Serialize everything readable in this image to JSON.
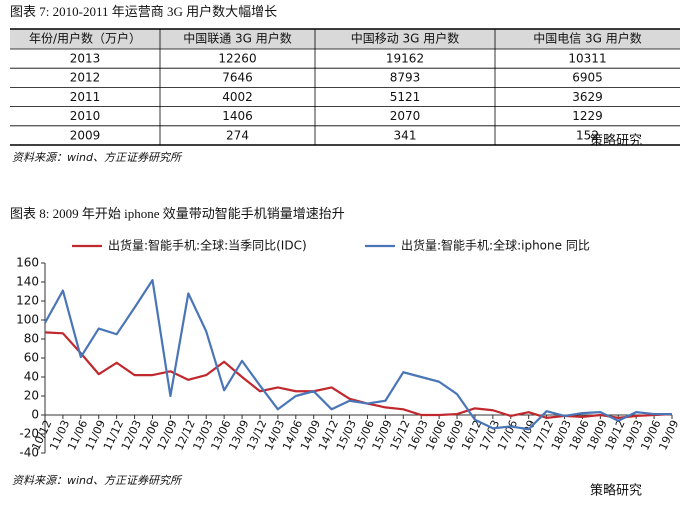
{
  "figure7": {
    "title": "图表 7:  2010-2011 年运营商 3G 用户数大幅增长",
    "table": {
      "columns": [
        "年份/用户数（万户）",
        "中国联通 3G 用户数",
        "中国移动 3G 用户数",
        "中国电信 3G 用户数"
      ],
      "rows": [
        [
          "2013",
          12260,
          19162,
          10311
        ],
        [
          "2012",
          7646,
          8793,
          6905
        ],
        [
          "2011",
          4002,
          5121,
          3629
        ],
        [
          "2010",
          1406,
          2070,
          1229
        ],
        [
          "2009",
          274,
          341,
          152
        ]
      ]
    },
    "source": "资料来源：wind、方正证券研究所"
  },
  "watermark": "策略研究",
  "chart_data": {
    "type": "line",
    "title": "图表 8:  2009 年开始 iphone 效量带动智能手机销量增速抬升",
    "categories": [
      "10/12",
      "11/03",
      "11/06",
      "11/09",
      "11/12",
      "12/03",
      "12/06",
      "12/09",
      "12/12",
      "13/03",
      "13/06",
      "13/09",
      "13/12",
      "14/03",
      "14/06",
      "14/09",
      "14/12",
      "15/03",
      "15/06",
      "15/09",
      "15/12",
      "16/03",
      "16/06",
      "16/09",
      "16/12",
      "17/03",
      "17/06",
      "17/09",
      "17/12",
      "18/03",
      "18/06",
      "18/09",
      "18/12",
      "19/03",
      "19/06",
      "19/09"
    ],
    "series": [
      {
        "name": "出货量:智能手机:全球:当季同比(IDC)",
        "color": "#c0282d",
        "values": [
          87,
          86,
          65,
          43,
          55,
          42,
          42,
          46,
          37,
          42,
          56,
          40,
          25,
          29,
          25,
          25,
          29,
          17,
          12,
          8,
          6,
          0,
          0,
          1,
          7,
          5,
          -1,
          3,
          -3,
          -1,
          -2,
          0,
          -3,
          -1,
          0,
          1
        ]
      },
      {
        "name": "出货量:智能手机:全球:iphone 同比",
        "color": "#4a76b8",
        "values": [
          97,
          131,
          61,
          91,
          85,
          113,
          142,
          20,
          128,
          88,
          26,
          57,
          31,
          6,
          20,
          25,
          6,
          15,
          12,
          15,
          45,
          40,
          35,
          22,
          -5,
          -14,
          -12,
          -15,
          4,
          -1,
          2,
          3,
          -6,
          3,
          1,
          1
        ]
      }
    ],
    "ylim": [
      -40,
      160
    ],
    "yticks": [
      -40,
      -20,
      0,
      20,
      40,
      60,
      80,
      100,
      120,
      140,
      160
    ],
    "source": "资料来源：wind、方正证券研究所"
  }
}
